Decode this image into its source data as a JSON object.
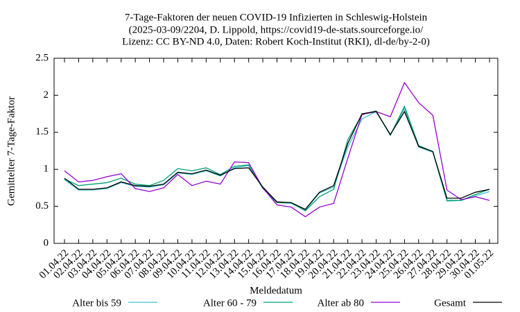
{
  "chart_data": {
    "type": "line",
    "title": [
      "7-Tage-Faktoren der neuen COVID-19 Infizierten in Schleswig-Holstein",
      "(2025-03-09/2204, D. Lippold, https://covid19-de-stats.sourceforge.io/",
      "Lizenz: CC BY-ND 4.0, Daten: Robert Koch-Institut (RKI), dl-de/by-2-0)"
    ],
    "x_label": "Meldedatum",
    "y_label": "Gemittelter 7-Tage-Faktor",
    "categories": [
      "01.04.22",
      "02.04.22",
      "03.04.22",
      "04.04.22",
      "05.04.22",
      "06.04.22",
      "07.04.22",
      "08.04.22",
      "09.04.22",
      "10.04.22",
      "11.04.22",
      "12.04.22",
      "13.04.22",
      "14.04.22",
      "15.04.22",
      "16.04.22",
      "17.04.22",
      "18.04.22",
      "19.04.22",
      "20.04.22",
      "21.04.22",
      "22.04.22",
      "23.04.22",
      "24.04.22",
      "25.04.22",
      "26.04.22",
      "27.04.22",
      "28.04.22",
      "29.04.22",
      "30.04.22",
      "01.05.22"
    ],
    "series": [
      {
        "name": "Alter bis 59",
        "color": "#41c1cd",
        "values": [
          0.86,
          0.72,
          0.72,
          0.74,
          0.82,
          0.77,
          0.76,
          0.79,
          0.95,
          0.93,
          0.98,
          0.91,
          1.02,
          1.05,
          0.75,
          0.55,
          0.54,
          0.45,
          0.68,
          0.76,
          1.3,
          1.68,
          1.78,
          1.46,
          1.82,
          1.3,
          1.23,
          0.57,
          0.58,
          0.64,
          0.7
        ]
      },
      {
        "name": "Alter 60 - 79",
        "color": "#009e73",
        "values": [
          0.87,
          0.78,
          0.8,
          0.82,
          0.88,
          0.8,
          0.78,
          0.85,
          1.01,
          0.98,
          1.02,
          0.93,
          1.04,
          1.06,
          0.74,
          0.55,
          0.55,
          0.44,
          0.63,
          0.73,
          1.4,
          1.74,
          1.79,
          1.46,
          1.85,
          1.32,
          1.24,
          0.58,
          0.58,
          0.66,
          0.73
        ]
      },
      {
        "name": "Alter ab 80",
        "color": "#9400d3",
        "values": [
          0.98,
          0.83,
          0.85,
          0.9,
          0.94,
          0.74,
          0.7,
          0.75,
          0.93,
          0.78,
          0.84,
          0.8,
          1.1,
          1.09,
          0.75,
          0.52,
          0.49,
          0.36,
          0.49,
          0.54,
          1.15,
          1.74,
          1.78,
          1.71,
          2.17,
          1.9,
          1.73,
          0.72,
          0.59,
          0.63,
          0.58
        ]
      },
      {
        "name": "Gesamt",
        "color": "#000000",
        "values": [
          0.88,
          0.73,
          0.73,
          0.75,
          0.83,
          0.78,
          0.77,
          0.8,
          0.96,
          0.94,
          0.99,
          0.92,
          1.01,
          1.02,
          0.76,
          0.56,
          0.55,
          0.46,
          0.69,
          0.78,
          1.35,
          1.75,
          1.78,
          1.47,
          1.78,
          1.31,
          1.24,
          0.61,
          0.61,
          0.69,
          0.73
        ]
      }
    ],
    "ylim": [
      0,
      2.5
    ],
    "yticks": [
      0,
      0.5,
      1,
      1.5,
      2,
      2.5
    ],
    "grid": false,
    "legend": "bottom"
  }
}
